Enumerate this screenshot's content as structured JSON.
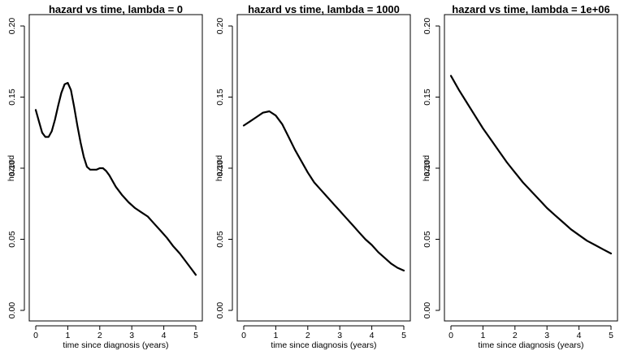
{
  "chart_data": [
    {
      "type": "line",
      "title": "hazard vs time, lambda = 0",
      "xlabel": "time since diagnosis (years)",
      "ylabel": "hazard",
      "xlim": [
        0,
        5
      ],
      "ylim": [
        0,
        0.2
      ],
      "xticks": [
        "0",
        "1",
        "2",
        "3",
        "4",
        "5"
      ],
      "yticks": [
        "0.00",
        "0.05",
        "0.10",
        "0.15",
        "0.20"
      ],
      "grid": false,
      "series": [
        {
          "x": [
            0,
            0.1,
            0.2,
            0.3,
            0.4,
            0.5,
            0.6,
            0.7,
            0.8,
            0.9,
            1.0,
            1.1,
            1.2,
            1.3,
            1.4,
            1.5,
            1.6,
            1.7,
            1.8,
            1.9,
            2.0,
            2.1,
            2.2,
            2.3,
            2.5,
            2.7,
            2.9,
            3.1,
            3.3,
            3.5,
            3.7,
            3.9,
            4.1,
            4.3,
            4.5,
            4.7,
            4.9,
            5.0
          ],
          "y": [
            0.141,
            0.133,
            0.125,
            0.122,
            0.122,
            0.126,
            0.134,
            0.144,
            0.153,
            0.159,
            0.16,
            0.155,
            0.143,
            0.13,
            0.118,
            0.108,
            0.101,
            0.099,
            0.099,
            0.099,
            0.1,
            0.1,
            0.098,
            0.095,
            0.087,
            0.081,
            0.076,
            0.072,
            0.069,
            0.066,
            0.061,
            0.056,
            0.051,
            0.045,
            0.04,
            0.034,
            0.028,
            0.025
          ]
        }
      ]
    },
    {
      "type": "line",
      "title": "hazard vs time, lambda = 1000",
      "xlabel": "time since diagnosis (years)",
      "ylabel": "hazard",
      "xlim": [
        0,
        5
      ],
      "ylim": [
        0,
        0.2
      ],
      "xticks": [
        "0",
        "1",
        "2",
        "3",
        "4",
        "5"
      ],
      "yticks": [
        "0.00",
        "0.05",
        "0.10",
        "0.15",
        "0.20"
      ],
      "grid": false,
      "series": [
        {
          "x": [
            0,
            0.2,
            0.4,
            0.6,
            0.8,
            1.0,
            1.2,
            1.4,
            1.6,
            1.8,
            2.0,
            2.2,
            2.4,
            2.6,
            2.8,
            3.0,
            3.2,
            3.4,
            3.6,
            3.8,
            4.0,
            4.2,
            4.4,
            4.6,
            4.8,
            5.0
          ],
          "y": [
            0.13,
            0.133,
            0.136,
            0.139,
            0.14,
            0.137,
            0.131,
            0.122,
            0.113,
            0.105,
            0.097,
            0.09,
            0.085,
            0.08,
            0.075,
            0.07,
            0.065,
            0.06,
            0.055,
            0.05,
            0.046,
            0.041,
            0.037,
            0.033,
            0.03,
            0.028
          ]
        }
      ]
    },
    {
      "type": "line",
      "title": "hazard vs time, lambda = 1e+06",
      "xlabel": "time since diagnosis (years)",
      "ylabel": "hazard",
      "xlim": [
        0,
        5
      ],
      "ylim": [
        0,
        0.2
      ],
      "xticks": [
        "0",
        "1",
        "2",
        "3",
        "4",
        "5"
      ],
      "yticks": [
        "0.00",
        "0.05",
        "0.10",
        "0.15",
        "0.20"
      ],
      "grid": false,
      "series": [
        {
          "x": [
            0,
            0.25,
            0.5,
            0.75,
            1.0,
            1.25,
            1.5,
            1.75,
            2.0,
            2.25,
            2.5,
            2.75,
            3.0,
            3.25,
            3.5,
            3.75,
            4.0,
            4.25,
            4.5,
            4.75,
            5.0
          ],
          "y": [
            0.165,
            0.155,
            0.146,
            0.137,
            0.128,
            0.12,
            0.112,
            0.104,
            0.097,
            0.09,
            0.084,
            0.078,
            0.072,
            0.067,
            0.062,
            0.057,
            0.053,
            0.049,
            0.046,
            0.043,
            0.04
          ]
        }
      ]
    }
  ]
}
